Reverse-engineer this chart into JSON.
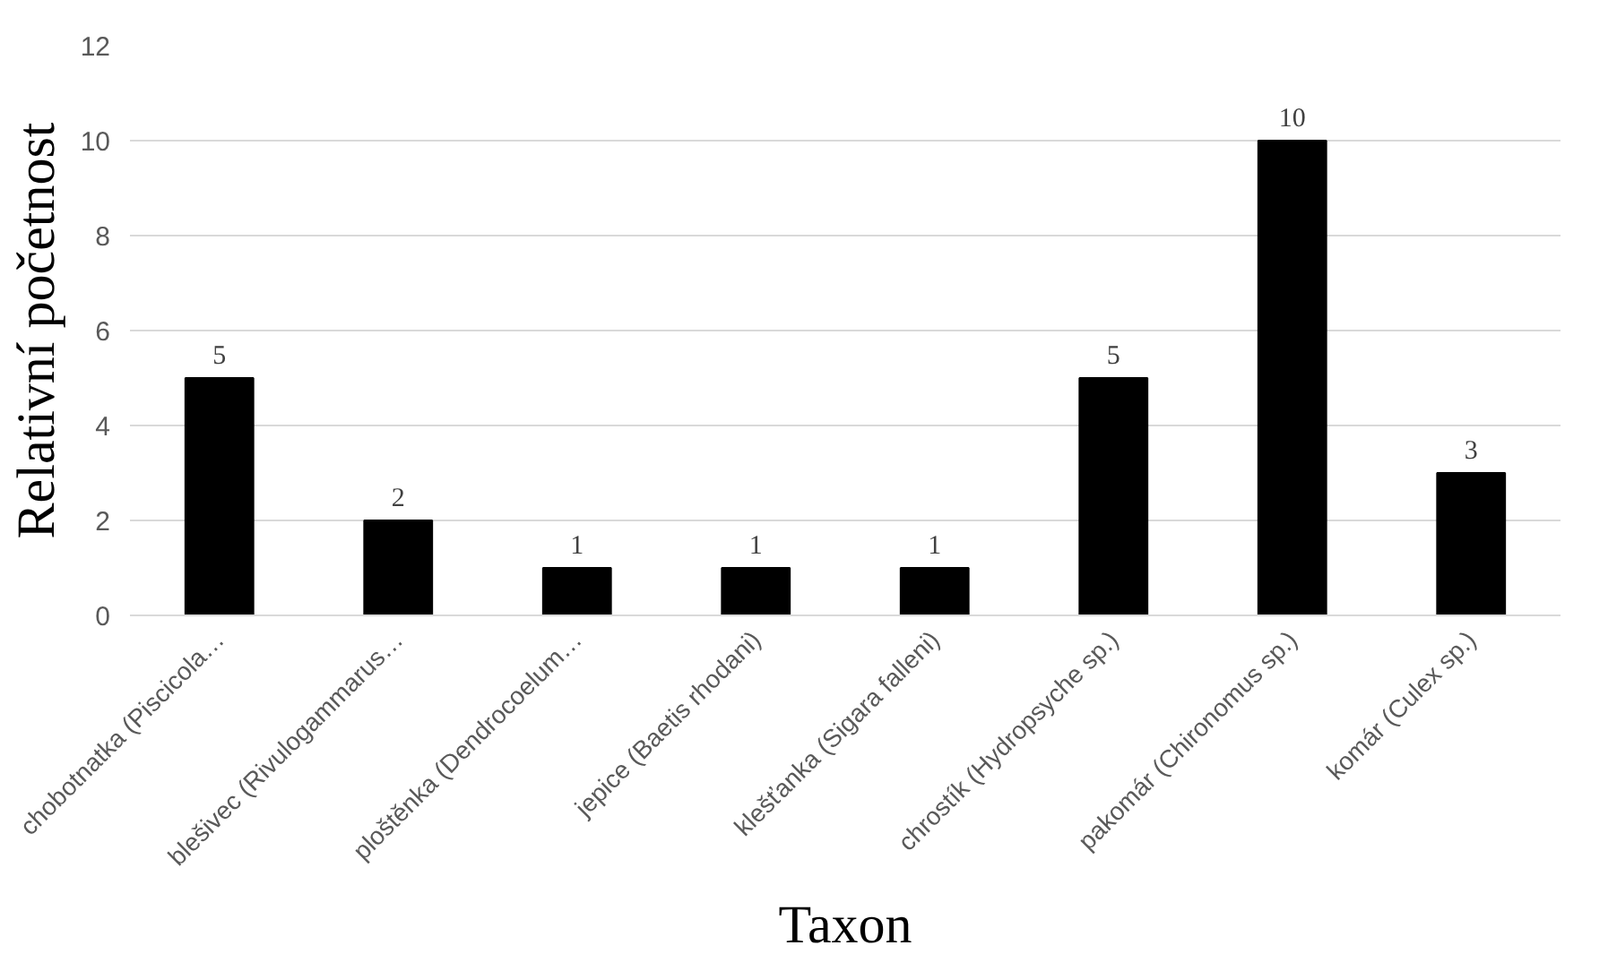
{
  "chart_data": {
    "type": "bar",
    "xlabel": "Taxon",
    "ylabel": "Relativní početnost",
    "categories": [
      "chobotnatka (Piscicola…",
      "blešivec (Rivulogammarus…",
      "ploštěnka (Dendrocoelum…",
      "jepice (Baetis rhodani)",
      "klešťanka (Sigara falleni)",
      "chrostík (Hydropsyche sp.)",
      "pakomár (Chironomus sp.)",
      "komár (Culex sp.)"
    ],
    "values": [
      5,
      2,
      1,
      1,
      1,
      5,
      10,
      3
    ],
    "color": "#000000",
    "ylim": [
      0,
      12
    ],
    "yticks": [
      0,
      2,
      4,
      6,
      8,
      10,
      12
    ],
    "grid": "y",
    "data_labels": true
  }
}
